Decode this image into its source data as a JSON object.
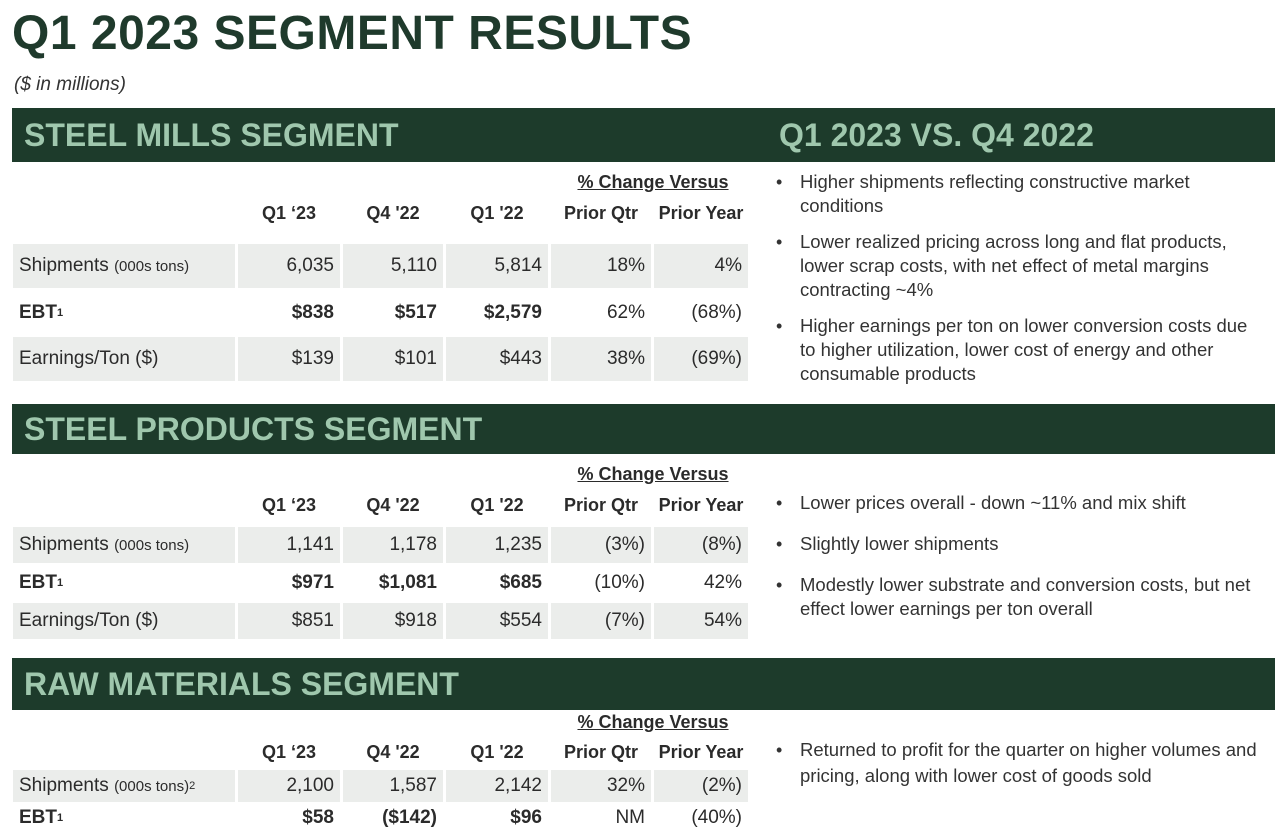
{
  "page": {
    "title": "Q1 2023 SEGMENT RESULTS",
    "units_note": "($ in millions)"
  },
  "columns": {
    "change_header": "% Change Versus",
    "q1_23": "Q1 ‘23",
    "q4_22": "Q4 '22",
    "q1_22": "Q1 '22",
    "prior_qtr": "Prior Qtr",
    "prior_year": "Prior Year"
  },
  "comparison_title": "Q1 2023 VS. Q4 2022",
  "segments": [
    {
      "title": "STEEL MILLS SEGMENT",
      "rows": [
        {
          "label": "Shipments",
          "label_note": "(000s tons)",
          "sup": "",
          "q1_23": "6,035",
          "q4_22": "5,110",
          "q1_22": "5,814",
          "prior_qtr": "18%",
          "prior_year": "4%"
        },
        {
          "label": "EBT",
          "label_note": "",
          "sup": "1",
          "q1_23": "$838",
          "q4_22": "$517",
          "q1_22": "$2,579",
          "prior_qtr": "62%",
          "prior_year": "(68%)"
        },
        {
          "label": "Earnings/Ton ($)",
          "label_note": "",
          "sup": "",
          "q1_23": "$139",
          "q4_22": "$101",
          "q1_22": "$443",
          "prior_qtr": "38%",
          "prior_year": "(69%)"
        }
      ],
      "bullets": [
        "Higher shipments reflecting constructive market conditions",
        "Lower realized pricing across long and flat products, lower scrap costs, with net effect of metal margins contracting ~4%",
        "Higher earnings per ton on lower conversion costs due to higher utilization, lower cost of energy and other consumable products"
      ]
    },
    {
      "title": "STEEL PRODUCTS SEGMENT",
      "rows": [
        {
          "label": "Shipments",
          "label_note": "(000s tons)",
          "sup": "",
          "q1_23": "1,141",
          "q4_22": "1,178",
          "q1_22": "1,235",
          "prior_qtr": "(3%)",
          "prior_year": "(8%)"
        },
        {
          "label": "EBT",
          "label_note": "",
          "sup": "1",
          "q1_23": "$971",
          "q4_22": "$1,081",
          "q1_22": "$685",
          "prior_qtr": "(10%)",
          "prior_year": "42%"
        },
        {
          "label": "Earnings/Ton ($)",
          "label_note": "",
          "sup": "",
          "q1_23": "$851",
          "q4_22": "$918",
          "q1_22": "$554",
          "prior_qtr": "(7%)",
          "prior_year": "54%"
        }
      ],
      "bullets": [
        "Lower prices overall - down ~11% and mix shift",
        "Slightly lower shipments",
        "Modestly lower substrate and conversion costs, but net effect lower earnings per ton overall"
      ]
    },
    {
      "title": "RAW MATERIALS SEGMENT",
      "rows": [
        {
          "label": "Shipments",
          "label_note": "(000s tons)",
          "sup": "2",
          "q1_23": "2,100",
          "q4_22": "1,587",
          "q1_22": "2,142",
          "prior_qtr": "32%",
          "prior_year": "(2%)"
        },
        {
          "label": "EBT",
          "label_note": "",
          "sup": "1",
          "q1_23": "$58",
          "q4_22": "($142)",
          "q1_22": "$96",
          "prior_qtr": "NM",
          "prior_year": "(40%)"
        }
      ],
      "bullets": [
        "Returned to profit for the quarter on higher volumes and pricing, along with lower cost of goods sold"
      ]
    }
  ]
}
